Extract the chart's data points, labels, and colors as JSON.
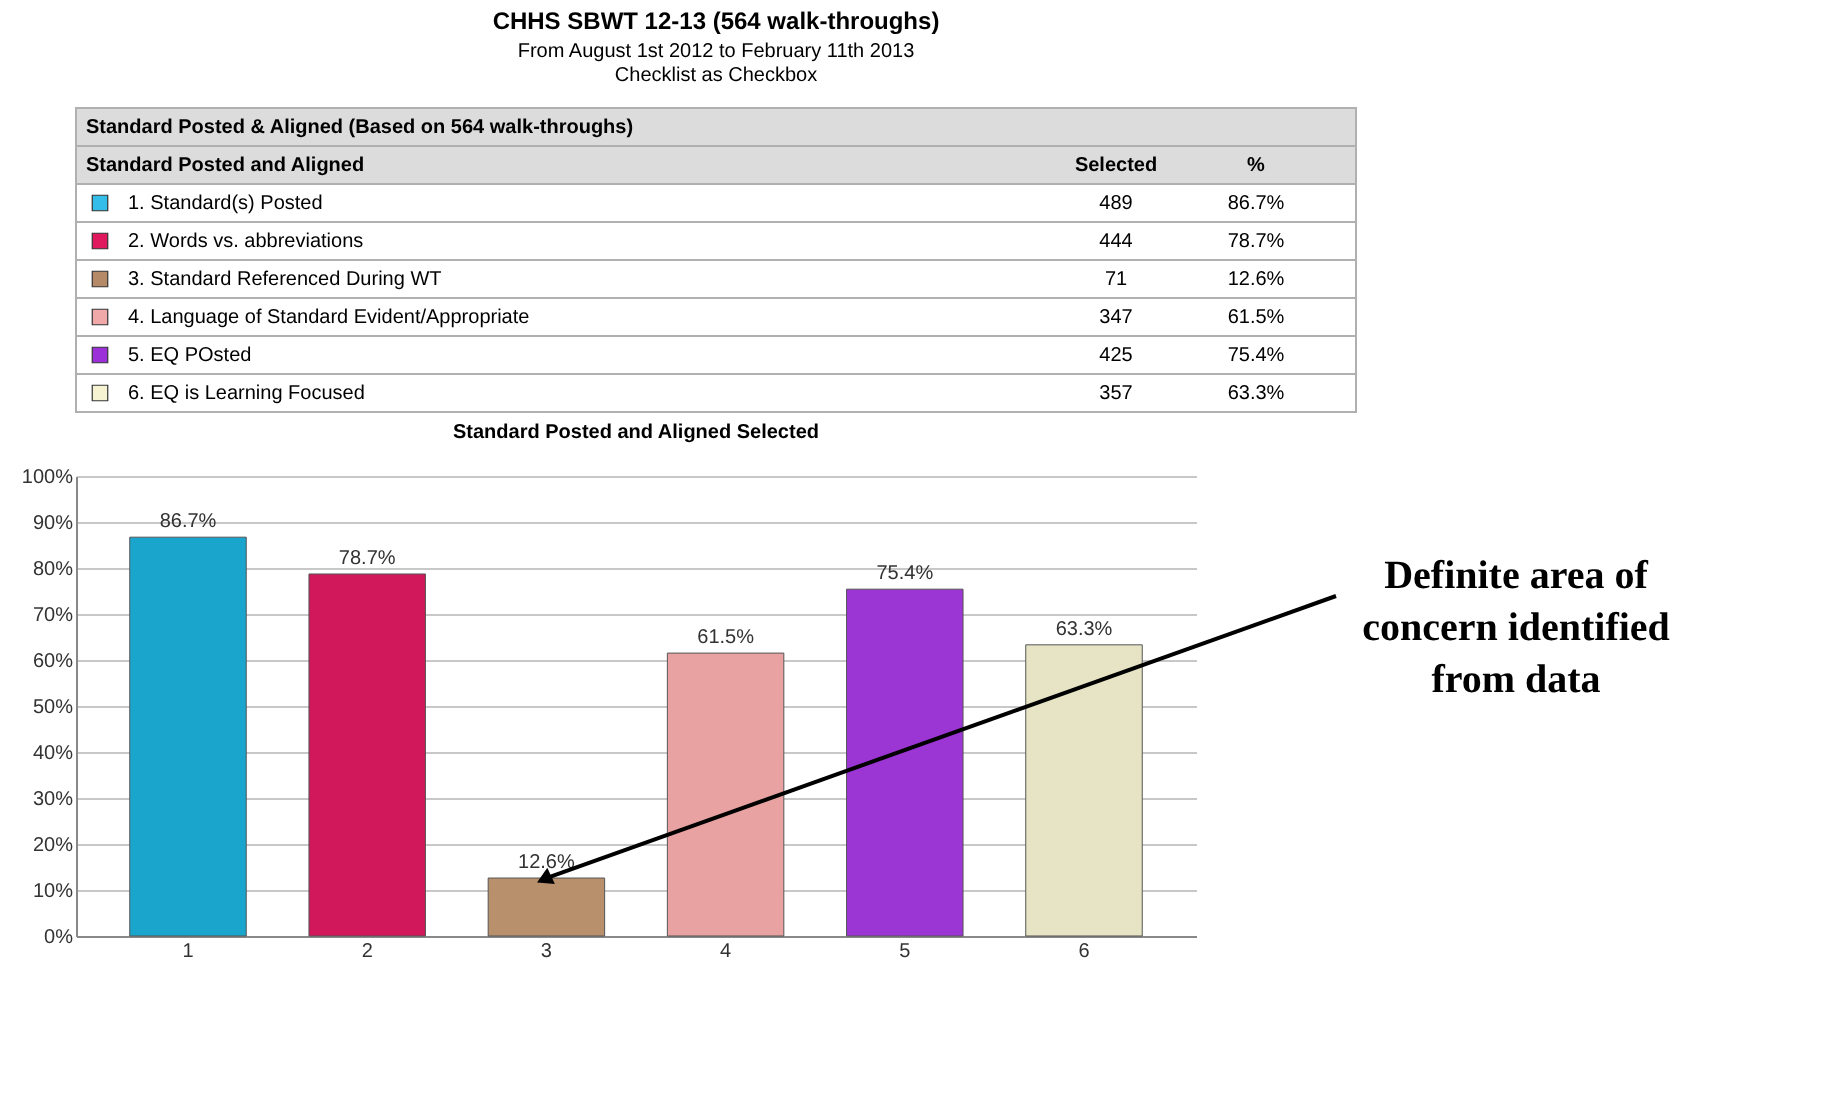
{
  "chart_data": [
    {
      "type": "other",
      "title": "CHHS SBWT 12-13 (564 walk-throughs)",
      "subtitle": "From August 1st 2012 to February 11th 2013\nChecklist as Checkbox",
      "annotations": [
        "Standard Posted & Aligned (Based on 564 walk-throughs)"
      ],
      "xlabel": "Standard Posted and Aligned",
      "categories": [
        "1. Standard(s) Posted",
        "2. Words vs. abbreviations",
        "3. Standard Referenced During WT",
        "4. Language of Standard Evident/Appropriate",
        "5. EQ POsted",
        "6. EQ is Learning Focused"
      ],
      "colors": [
        "#33bde8",
        "#e0195e",
        "#b58a68",
        "#f0a8a8",
        "#9b30d8",
        "#f6f3d2"
      ],
      "series": [
        {
          "name": "Selected",
          "values": [
            489,
            444,
            71,
            347,
            425,
            357
          ],
          "value_labels": [
            "489",
            "444",
            "71",
            "347",
            "425",
            "357"
          ]
        },
        {
          "name": "%",
          "values": [
            86.7,
            78.7,
            12.6,
            61.5,
            75.4,
            63.3
          ],
          "value_labels": [
            "86.7%",
            "78.7%",
            "12.6%",
            "61.5%",
            "75.4%",
            "63.3%"
          ]
        }
      ]
    },
    {
      "type": "bar",
      "title": "Standard Posted and Aligned Selected",
      "categories": [
        "1",
        "2",
        "3",
        "4",
        "5",
        "6"
      ],
      "values": [
        86.7,
        78.7,
        12.6,
        61.5,
        75.4,
        63.3
      ],
      "value_labels": [
        "86.7%",
        "78.7%",
        "12.6%",
        "61.5%",
        "75.4%",
        "63.3%"
      ],
      "colors": [
        "#1aa6cc",
        "#d0185a",
        "#b8906c",
        "#e8a2a2",
        "#9b35d3",
        "#e6e4c4"
      ],
      "ylim": [
        0,
        100
      ],
      "yticks": [
        {
          "value": 0,
          "label": "0%"
        },
        {
          "value": 10,
          "label": "10%"
        },
        {
          "value": 20,
          "label": "20%"
        },
        {
          "value": 30,
          "label": "30%"
        },
        {
          "value": 40,
          "label": "40%"
        },
        {
          "value": 50,
          "label": "50%"
        },
        {
          "value": 60,
          "label": "60%"
        },
        {
          "value": 70,
          "label": "70%"
        },
        {
          "value": 80,
          "label": "80%"
        },
        {
          "value": 90,
          "label": "90%"
        },
        {
          "value": 100,
          "label": "100%"
        }
      ],
      "grid": "y",
      "annotations": [
        {
          "text": "Definite area of concern identified from data",
          "x": "3",
          "y": 12.6
        }
      ]
    }
  ]
}
